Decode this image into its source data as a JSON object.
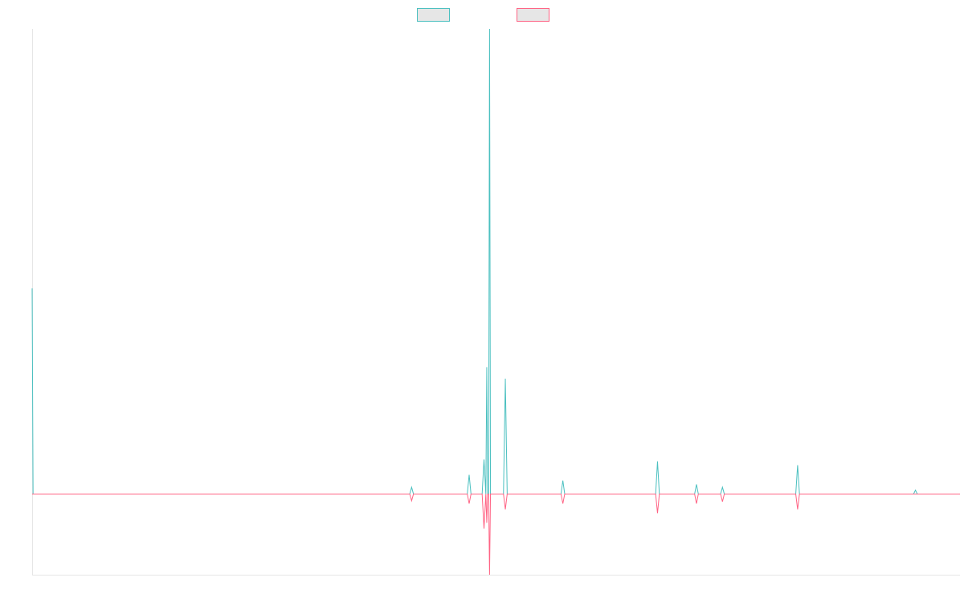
{
  "chart_data": {
    "type": "line",
    "title": "",
    "xlabel": "",
    "ylabel": "",
    "grid": false,
    "legend_placement": "top-center",
    "ylim": [
      -4.2,
      24.2
    ],
    "xlim": [
      0,
      1000
    ],
    "series": [
      {
        "name": "",
        "color": "#4bc0c0",
        "legend_fill": "#e6e6e6",
        "points": [
          [
            0,
            10.7
          ],
          [
            1,
            0
          ],
          [
            407,
            0
          ],
          [
            409,
            0.35
          ],
          [
            411,
            0
          ],
          [
            469,
            0
          ],
          [
            471,
            1.0
          ],
          [
            473,
            0
          ],
          [
            485,
            0
          ],
          [
            487,
            1.8
          ],
          [
            489,
            0
          ],
          [
            490,
            6.6
          ],
          [
            491,
            0
          ],
          [
            492,
            0
          ],
          [
            493,
            24.2
          ],
          [
            494,
            0
          ],
          [
            508,
            0
          ],
          [
            510,
            6.0
          ],
          [
            512,
            0
          ],
          [
            570,
            0
          ],
          [
            572,
            0.7
          ],
          [
            574,
            0
          ],
          [
            672,
            0
          ],
          [
            674,
            1.7
          ],
          [
            676,
            0
          ],
          [
            714,
            0
          ],
          [
            716,
            0.5
          ],
          [
            718,
            0
          ],
          [
            742,
            0
          ],
          [
            744,
            0.35
          ],
          [
            746,
            0
          ],
          [
            823,
            0
          ],
          [
            825,
            1.5
          ],
          [
            827,
            0
          ],
          [
            950,
            0
          ],
          [
            952,
            0.2
          ],
          [
            954,
            0
          ],
          [
            1000,
            0
          ]
        ]
      },
      {
        "name": "",
        "color": "#ff6384",
        "legend_fill": "#e6e6e6",
        "points": [
          [
            0,
            0
          ],
          [
            407,
            0
          ],
          [
            409,
            -0.35
          ],
          [
            411,
            0
          ],
          [
            469,
            0
          ],
          [
            471,
            -0.5
          ],
          [
            473,
            0
          ],
          [
            485,
            0
          ],
          [
            487,
            -1.8
          ],
          [
            489,
            0
          ],
          [
            490,
            -1.5
          ],
          [
            491,
            0
          ],
          [
            492,
            0
          ],
          [
            493,
            -4.2
          ],
          [
            494,
            0
          ],
          [
            508,
            0
          ],
          [
            510,
            -0.8
          ],
          [
            512,
            0
          ],
          [
            570,
            0
          ],
          [
            572,
            -0.5
          ],
          [
            574,
            0
          ],
          [
            672,
            0
          ],
          [
            674,
            -1.0
          ],
          [
            676,
            0
          ],
          [
            714,
            0
          ],
          [
            716,
            -0.5
          ],
          [
            718,
            0
          ],
          [
            742,
            0
          ],
          [
            744,
            -0.4
          ],
          [
            746,
            0
          ],
          [
            823,
            0
          ],
          [
            825,
            -0.8
          ],
          [
            827,
            0
          ],
          [
            1000,
            0
          ]
        ]
      }
    ]
  }
}
